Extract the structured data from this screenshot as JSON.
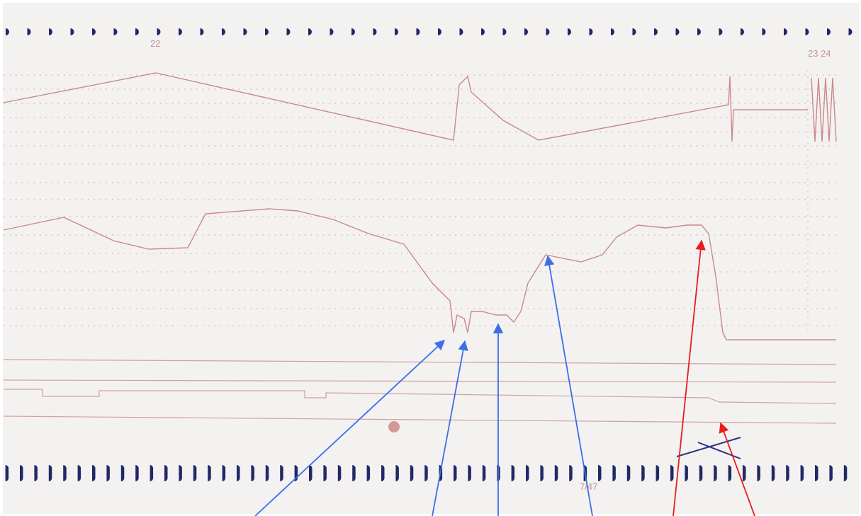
{
  "labels": {
    "top_left": "22",
    "top_right": "23 24",
    "bottom": "7/47"
  }
}
